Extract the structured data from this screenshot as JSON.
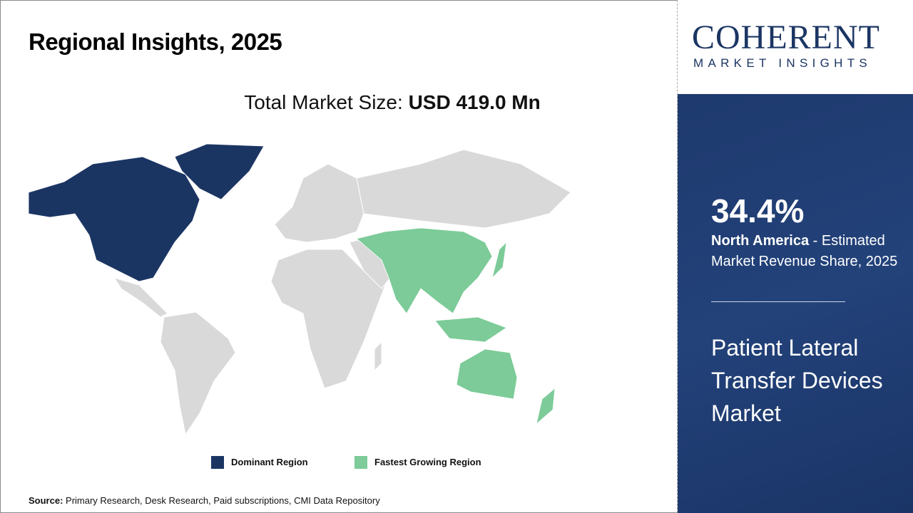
{
  "header": {
    "title": "Regional Insights, 2025"
  },
  "total": {
    "label": "Total Market Size: ",
    "value": "USD 419.0 Mn"
  },
  "map": {
    "dominant_color": "#1b3563",
    "fastest_color": "#7ccb98",
    "other_color": "#d9d9d9",
    "dominant_region": "North America",
    "fastest_region": "Asia Pacific"
  },
  "legend": [
    {
      "label": "Dominant Region",
      "color": "#1b3563"
    },
    {
      "label": "Fastest Growing Region",
      "color": "#7ccb98"
    }
  ],
  "source": {
    "label": "Source:",
    "text": " Primary Research, Desk Research, Paid subscriptions, CMI Data Repository"
  },
  "logo": {
    "line1": "COHERENT",
    "line2": "MARKET INSIGHTS"
  },
  "panel": {
    "share": "34.4%",
    "region": "North America",
    "desc": " - Estimated Market Revenue Share, 2025",
    "market": "Patient Lateral Transfer Devices Market"
  }
}
